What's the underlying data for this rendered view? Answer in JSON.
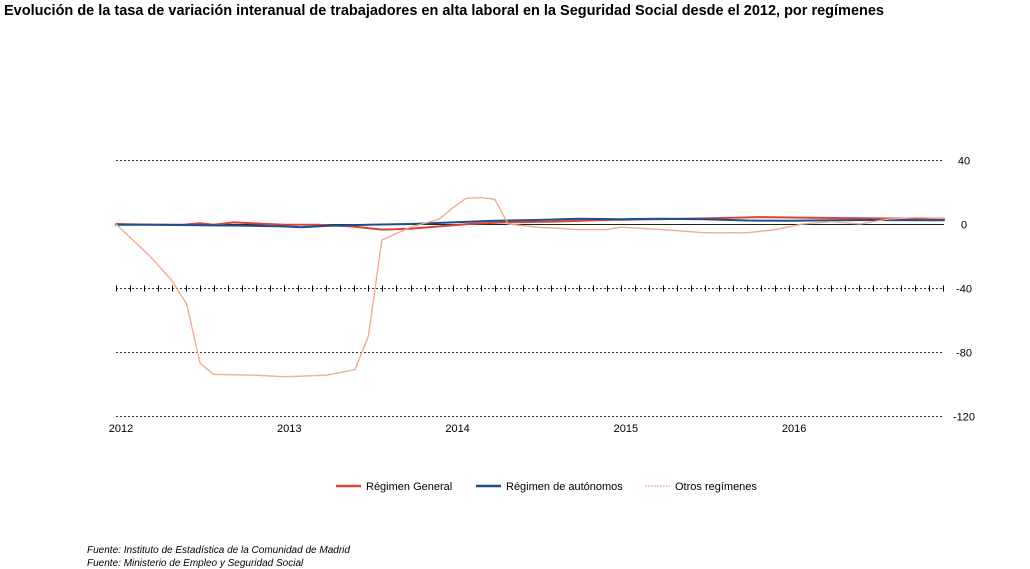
{
  "title": "Evolución de la tasa de variación interanual de trabajadores en alta laboral en la Seguridad Social desde el 2012, por regímenes",
  "sources": [
    "Fuente: Instituto de Estadística de la Comunidad de Madrid",
    "Fuente: Ministerio de Empleo y Seguridad Social"
  ],
  "chart_data": {
    "type": "line",
    "title": "Evolución de la tasa de variación interanual de trabajadores en alta laboral en la Seguridad Social desde el 2012, por regímenes",
    "xlabel": "",
    "ylabel": "",
    "x_ticks": [
      "2012",
      "2013",
      "2014",
      "2015",
      "2016"
    ],
    "x_range": [
      2012.0,
      2016.92
    ],
    "y_ticks": [
      40,
      0,
      -40,
      -80,
      -120
    ],
    "ylim": [
      -120,
      40
    ],
    "grid": "horizontal dashed",
    "legend_position": "bottom",
    "series": [
      {
        "name": "Régimen General",
        "color": "#d9443a",
        "style": "solid",
        "points": [
          [
            2012.0,
            0
          ],
          [
            2012.25,
            -0.5
          ],
          [
            2012.4,
            -0.5
          ],
          [
            2012.5,
            0.5
          ],
          [
            2012.58,
            -0.5
          ],
          [
            2012.7,
            1
          ],
          [
            2012.9,
            0
          ],
          [
            2013.0,
            -0.5
          ],
          [
            2013.2,
            -0.5
          ],
          [
            2013.4,
            -1.5
          ],
          [
            2013.58,
            -3.5
          ],
          [
            2013.75,
            -3
          ],
          [
            2013.92,
            -1.5
          ],
          [
            2014.1,
            0
          ],
          [
            2014.3,
            1
          ],
          [
            2014.6,
            1.5
          ],
          [
            2014.9,
            2.5
          ],
          [
            2015.2,
            3
          ],
          [
            2015.5,
            3.5
          ],
          [
            2015.83,
            4.3
          ],
          [
            2016.2,
            3.8
          ],
          [
            2016.5,
            3.5
          ],
          [
            2016.92,
            3.4
          ]
        ]
      },
      {
        "name": "Régimen de autónomos",
        "color": "#1f4e8c",
        "style": "solid",
        "points": [
          [
            2012.0,
            -0.5
          ],
          [
            2012.25,
            -0.5
          ],
          [
            2012.5,
            -0.8
          ],
          [
            2012.75,
            -1
          ],
          [
            2013.0,
            -1.5
          ],
          [
            2013.1,
            -2
          ],
          [
            2013.25,
            -1.2
          ],
          [
            2013.5,
            -0.5
          ],
          [
            2013.75,
            0
          ],
          [
            2014.0,
            1
          ],
          [
            2014.25,
            2
          ],
          [
            2014.5,
            2.5
          ],
          [
            2014.75,
            3.3
          ],
          [
            2015.0,
            3
          ],
          [
            2015.25,
            3.3
          ],
          [
            2015.5,
            3
          ],
          [
            2015.75,
            2.2
          ],
          [
            2016.0,
            2
          ],
          [
            2016.25,
            2.3
          ],
          [
            2016.5,
            2.5
          ],
          [
            2016.92,
            2.3
          ]
        ]
      },
      {
        "name": "Otros regímenes",
        "color": "#f0a98a",
        "style": "dotted",
        "points": [
          [
            2012.0,
            0
          ],
          [
            2012.1,
            -10
          ],
          [
            2012.2,
            -20
          ],
          [
            2012.33,
            -35
          ],
          [
            2012.42,
            -50
          ],
          [
            2012.5,
            -87
          ],
          [
            2012.58,
            -94
          ],
          [
            2012.83,
            -94.5
          ],
          [
            2013.0,
            -95.5
          ],
          [
            2013.25,
            -94.5
          ],
          [
            2013.42,
            -91
          ],
          [
            2013.5,
            -70
          ],
          [
            2013.58,
            -10
          ],
          [
            2013.75,
            -2
          ],
          [
            2013.92,
            3
          ],
          [
            2014.0,
            10
          ],
          [
            2014.08,
            16
          ],
          [
            2014.17,
            16.5
          ],
          [
            2014.25,
            15.5
          ],
          [
            2014.33,
            0
          ],
          [
            2014.5,
            -2
          ],
          [
            2014.75,
            -3.5
          ],
          [
            2014.92,
            -3.5
          ],
          [
            2015.0,
            -2
          ],
          [
            2015.25,
            -3.5
          ],
          [
            2015.5,
            -5.5
          ],
          [
            2015.75,
            -5.5
          ],
          [
            2015.92,
            -3.5
          ],
          [
            2016.08,
            0
          ],
          [
            2016.25,
            1.5
          ],
          [
            2016.42,
            0
          ],
          [
            2016.58,
            3
          ],
          [
            2016.75,
            4
          ],
          [
            2016.92,
            3.5
          ]
        ]
      }
    ]
  }
}
